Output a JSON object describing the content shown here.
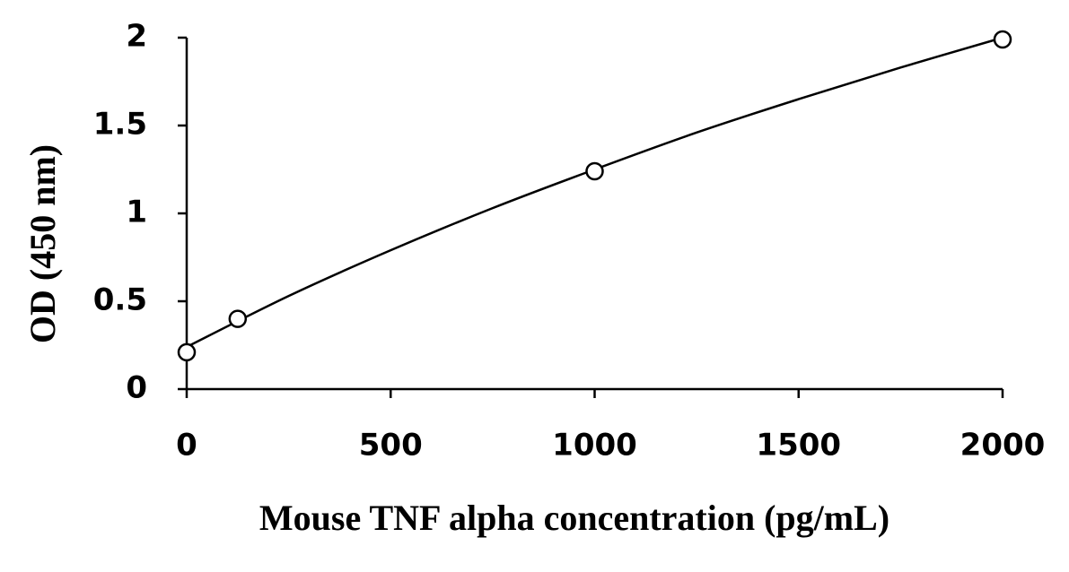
{
  "chart_data": {
    "type": "scatter",
    "x_label": "Mouse TNF alpha concentration (pg/mL)",
    "y_label": "OD (450 nm)",
    "series": [
      {
        "x": [
          0,
          125,
          1000,
          2000
        ],
        "values": [
          0.21,
          0.4,
          1.24,
          1.99
        ],
        "marker": "circle",
        "color": "#000000"
      },
      {
        "x": [
          0,
          250,
          500,
          750,
          1000,
          1250,
          1500,
          1750,
          2000
        ],
        "values": [
          0.24,
          0.53,
          0.79,
          1.03,
          1.25,
          1.46,
          1.65,
          1.83,
          2.0
        ],
        "marker": "none",
        "color": "#000000"
      }
    ],
    "xlim": [
      0,
      2000
    ],
    "xticks": [
      0,
      500,
      1000,
      1500,
      2000
    ],
    "ylim": [
      0,
      2
    ],
    "yticks": [
      0,
      0.5,
      1,
      1.5,
      2
    ],
    "grid": false
  }
}
